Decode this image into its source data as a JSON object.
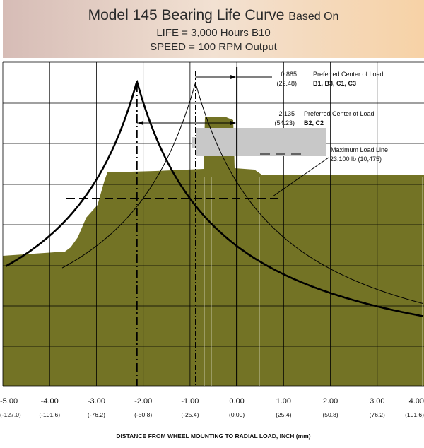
{
  "header": {
    "title_main": "Model 145 Bearing Life Curve",
    "title_suffix": "Based On",
    "line2": "LIFE = 3,000 Hours B10",
    "line3": "SPEED = 100 RPM Output"
  },
  "colors": {
    "fill": "#737325",
    "grid": "#000000",
    "load_box": "#c8c8c8"
  },
  "chart_data": {
    "type": "area",
    "title": "Model 145 Bearing Life Curve Based On LIFE = 3,000 Hours B10 SPEED = 100 RPM Output",
    "xlabel": "DISTANCE FROM WHEEL MOUNTING TO RADIAL LOAD, INCH (mm)",
    "xlim": [
      -5.0,
      4.0
    ],
    "x_ticks": [
      "-5.00",
      "-4.00",
      "-3.00",
      "-2.00",
      "-1.00",
      "0.00",
      "1.00",
      "2.00",
      "3.00",
      "4.00"
    ],
    "x_ticks_mm": [
      "(-127.0)",
      "(-101.6)",
      "(-76.2)",
      "(-50.8)",
      "(-25.4)",
      "(0.00)",
      "(25.4)",
      "(50.8)",
      "(76.2)",
      "(101.6)"
    ],
    "grid": true,
    "annotations": [
      {
        "value": "0.885",
        "mm": "(22.48)",
        "label": "Preferred Center of Load",
        "bold": "B1, B3, C1, C3"
      },
      {
        "value": "2.135",
        "mm": "(54.23)",
        "label": "Preferred Center of Load",
        "bold": "B2, C2"
      },
      {
        "label": "Maximum Load Line",
        "value": "23,100 lb (10,475)"
      }
    ],
    "series": [
      {
        "style": "thick",
        "peak_x": -2.135
      },
      {
        "style": "thin",
        "peak_x": -0.885
      }
    ]
  }
}
